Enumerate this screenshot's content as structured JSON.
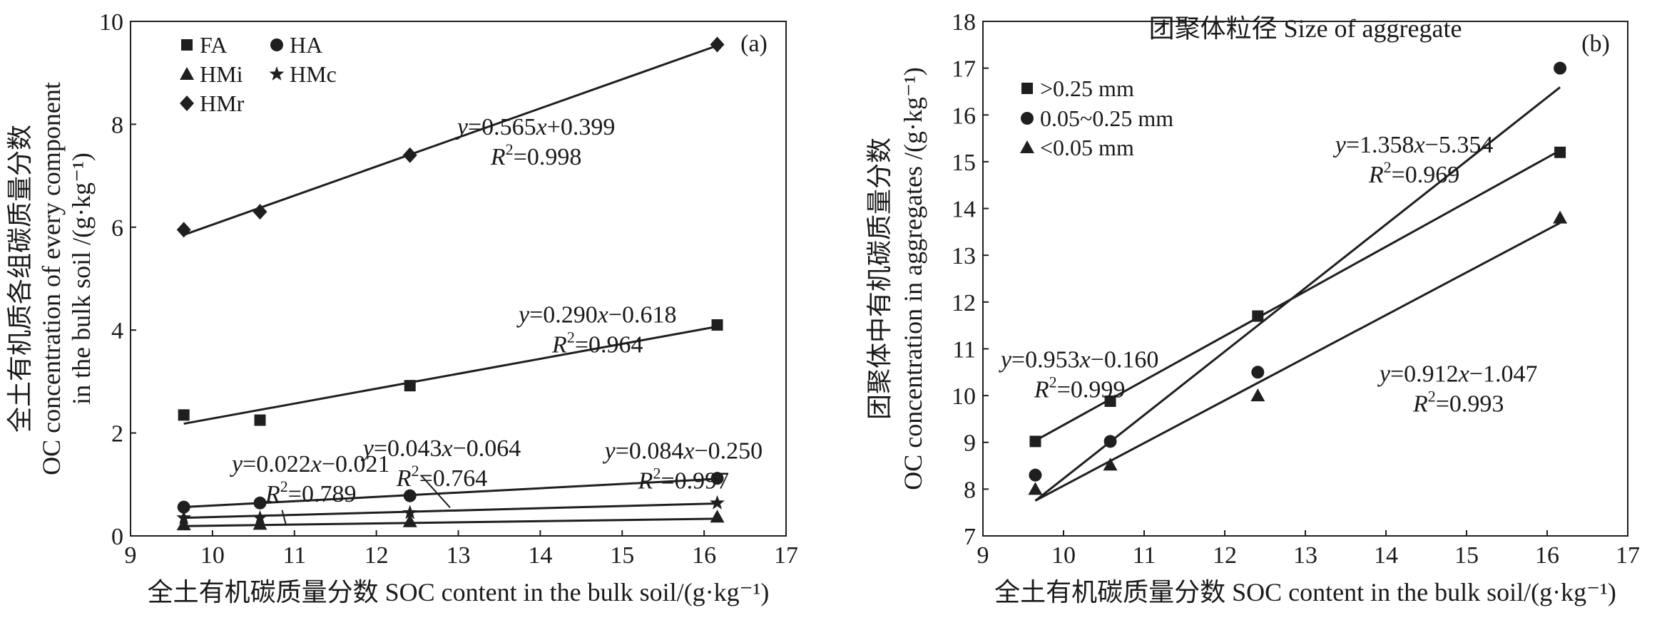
{
  "chart_data": [
    {
      "panel": "(a)",
      "type": "scatter",
      "xlabel": "全土有机碳质量分数 SOC content in the bulk soil/(g·kg⁻¹)",
      "ylabel_zh": "全土有机质各组碳质量分数",
      "ylabel_en1": "OC concentration of every component",
      "ylabel_en2": "in the bulk soil /(g·kg⁻¹)",
      "xlim": [
        9,
        17
      ],
      "ylim": [
        0,
        10
      ],
      "xticks": [
        9,
        10,
        11,
        12,
        13,
        14,
        15,
        16,
        17
      ],
      "yticks": [
        0,
        2,
        4,
        6,
        8,
        10
      ],
      "grid": false,
      "legend_position": "top-left",
      "legend": [
        "FA",
        "HA",
        "HMi",
        "HMc",
        "HMr"
      ],
      "x": [
        9.65,
        10.58,
        12.41,
        16.16
      ],
      "series": [
        {
          "name": "FA",
          "marker": "square",
          "values": [
            2.35,
            2.25,
            2.92,
            4.1
          ],
          "fit": {
            "slope": 0.29,
            "intercept": -0.618
          }
        },
        {
          "name": "HA",
          "marker": "circle",
          "values": [
            0.56,
            0.64,
            0.78,
            1.12
          ],
          "fit": {
            "slope": 0.084,
            "intercept": -0.25
          }
        },
        {
          "name": "HMi",
          "marker": "triangle",
          "values": [
            0.22,
            0.23,
            0.28,
            0.37
          ],
          "fit": {
            "slope": 0.022,
            "intercept": -0.021
          }
        },
        {
          "name": "HMc",
          "marker": "star",
          "values": [
            0.35,
            0.35,
            0.45,
            0.64
          ],
          "fit": {
            "slope": 0.043,
            "intercept": -0.064
          }
        },
        {
          "name": "HMr",
          "marker": "diamond",
          "values": [
            5.95,
            6.3,
            7.4,
            9.55
          ],
          "fit": {
            "slope": 0.565,
            "intercept": 0.399
          }
        }
      ],
      "annotations": [
        {
          "eq": "y=0.565x+0.399",
          "r2": "R²=0.998",
          "data_x": 13.95,
          "data_y": 7.8
        },
        {
          "eq": "y=0.290x−0.618",
          "r2": "R²=0.964",
          "data_x": 14.7,
          "data_y": 4.15
        },
        {
          "eq": "y=0.043x−0.064",
          "r2": "R²=0.764",
          "data_x": 12.8,
          "data_y": 1.55
        },
        {
          "eq": "y=0.084x−0.250",
          "r2": "R²=0.997",
          "data_x": 15.75,
          "data_y": 1.5
        },
        {
          "eq": "y=0.022x−0.021",
          "r2": "R²=0.789",
          "data_x": 11.2,
          "data_y": 1.25
        }
      ]
    },
    {
      "panel": "(b)",
      "type": "scatter",
      "title": "团聚体粒径 Size of aggregate",
      "xlabel": "全土有机碳质量分数 SOC content in the bulk soil/(g·kg⁻¹)",
      "ylabel_zh": "团聚体中有机碳质量分数",
      "ylabel_en": "OC concentration in aggregates /(g·kg⁻¹)",
      "xlim": [
        9,
        17
      ],
      "ylim": [
        7,
        18
      ],
      "xticks": [
        9,
        10,
        11,
        12,
        13,
        14,
        15,
        16,
        17
      ],
      "yticks": [
        7,
        8,
        9,
        10,
        11,
        12,
        13,
        14,
        15,
        16,
        17,
        18
      ],
      "grid": false,
      "legend_position": "top-left",
      "legend": [
        ">0.25 mm",
        "0.05~0.25 mm",
        "<0.05 mm"
      ],
      "x": [
        9.65,
        10.58,
        12.41,
        16.16
      ],
      "series": [
        {
          "name": ">0.25 mm",
          "marker": "square",
          "values": [
            9.02,
            9.88,
            11.7,
            15.2
          ],
          "fit": {
            "slope": 0.953,
            "intercept": -0.16
          }
        },
        {
          "name": "0.05~0.25 mm",
          "marker": "circle",
          "values": [
            8.3,
            9.02,
            10.5,
            17.0
          ],
          "fit": {
            "slope": 1.358,
            "intercept": -5.354
          }
        },
        {
          "name": "<0.05 mm",
          "marker": "triangle",
          "values": [
            8.0,
            8.52,
            10.0,
            13.8
          ],
          "fit": {
            "slope": 0.912,
            "intercept": -1.047
          }
        }
      ],
      "annotations": [
        {
          "eq": "y=1.358x−5.354",
          "r2": "R²=0.969",
          "data_x": 14.35,
          "data_y": 15.2
        },
        {
          "eq": "y=0.953x−0.160",
          "r2": "R²=0.999",
          "data_x": 10.2,
          "data_y": 10.6
        },
        {
          "eq": "y=0.912x−1.047",
          "r2": "R²=0.993",
          "data_x": 14.9,
          "data_y": 10.3
        }
      ]
    }
  ]
}
